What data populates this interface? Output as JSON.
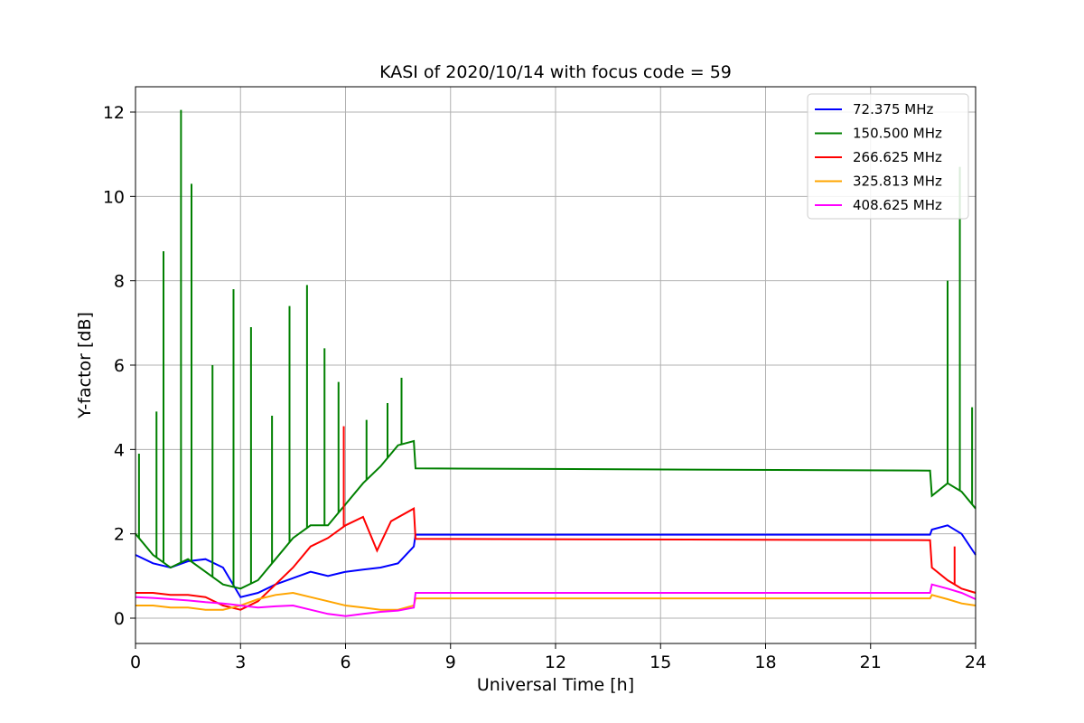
{
  "chart_data": {
    "type": "line",
    "title": "KASI of 2020/10/14 with focus code = 59",
    "xlabel": "Universal Time [h]",
    "ylabel": "Y-factor [dB]",
    "xlim": [
      0,
      24
    ],
    "ylim": [
      -0.6,
      12.6
    ],
    "xticks": [
      0,
      3,
      6,
      9,
      12,
      15,
      18,
      21,
      24
    ],
    "yticks": [
      0,
      2,
      4,
      6,
      8,
      10,
      12
    ],
    "grid": true,
    "legend_position": "top-right",
    "series": [
      {
        "name": " 72.375 MHz",
        "color": "#0000ff",
        "points": [
          [
            0,
            1.5
          ],
          [
            0.5,
            1.3
          ],
          [
            1,
            1.2
          ],
          [
            1.5,
            1.35
          ],
          [
            2,
            1.4
          ],
          [
            2.5,
            1.2
          ],
          [
            3,
            0.5
          ],
          [
            3.5,
            0.6
          ],
          [
            4,
            0.8
          ],
          [
            4.5,
            0.95
          ],
          [
            5,
            1.1
          ],
          [
            5.5,
            1.0
          ],
          [
            6,
            1.1
          ],
          [
            6.5,
            1.15
          ],
          [
            7,
            1.2
          ],
          [
            7.5,
            1.3
          ],
          [
            7.95,
            1.7
          ],
          [
            8,
            1.98
          ],
          [
            22.7,
            1.98
          ],
          [
            22.75,
            2.1
          ],
          [
            23.2,
            2.2
          ],
          [
            23.6,
            2.0
          ],
          [
            24,
            1.5
          ]
        ]
      },
      {
        "name": "150.500 MHz",
        "color": "#008000",
        "points": [
          [
            0,
            2.0
          ],
          [
            0.5,
            1.5
          ],
          [
            1,
            1.2
          ],
          [
            1.5,
            1.4
          ],
          [
            2,
            1.1
          ],
          [
            2.5,
            0.8
          ],
          [
            3,
            0.7
          ],
          [
            3.5,
            0.9
          ],
          [
            4,
            1.4
          ],
          [
            4.5,
            1.9
          ],
          [
            5,
            2.2
          ],
          [
            5.5,
            2.2
          ],
          [
            6,
            2.7
          ],
          [
            6.5,
            3.2
          ],
          [
            7,
            3.6
          ],
          [
            7.5,
            4.1
          ],
          [
            7.95,
            4.2
          ],
          [
            8,
            3.55
          ],
          [
            22.7,
            3.5
          ],
          [
            22.75,
            2.9
          ],
          [
            23.2,
            3.2
          ],
          [
            23.6,
            3.0
          ],
          [
            24,
            2.6
          ]
        ],
        "peaks": [
          [
            0.1,
            3.9
          ],
          [
            0.6,
            4.9
          ],
          [
            0.8,
            8.7
          ],
          [
            1.3,
            12.05
          ],
          [
            1.6,
            10.3
          ],
          [
            2.2,
            6.0
          ],
          [
            2.8,
            7.8
          ],
          [
            3.3,
            6.9
          ],
          [
            3.9,
            4.8
          ],
          [
            4.4,
            7.4
          ],
          [
            4.9,
            7.9
          ],
          [
            5.4,
            6.4
          ],
          [
            5.8,
            5.6
          ],
          [
            6.6,
            4.7
          ],
          [
            7.2,
            5.1
          ],
          [
            7.6,
            5.7
          ],
          [
            23.2,
            8.0
          ],
          [
            23.55,
            10.7
          ],
          [
            23.9,
            5.0
          ]
        ]
      },
      {
        "name": "266.625 MHz",
        "color": "#ff0000",
        "points": [
          [
            0,
            0.6
          ],
          [
            0.5,
            0.6
          ],
          [
            1,
            0.55
          ],
          [
            1.5,
            0.55
          ],
          [
            2,
            0.5
          ],
          [
            2.5,
            0.3
          ],
          [
            3,
            0.2
          ],
          [
            3.5,
            0.4
          ],
          [
            4,
            0.8
          ],
          [
            4.5,
            1.2
          ],
          [
            5,
            1.7
          ],
          [
            5.5,
            1.9
          ],
          [
            6,
            2.2
          ],
          [
            6.5,
            2.4
          ],
          [
            6.9,
            1.6
          ],
          [
            7.3,
            2.3
          ],
          [
            7.95,
            2.6
          ],
          [
            8,
            1.88
          ],
          [
            22.7,
            1.85
          ],
          [
            22.75,
            1.2
          ],
          [
            23.2,
            0.9
          ],
          [
            23.6,
            0.7
          ],
          [
            24,
            0.6
          ]
        ],
        "peaks": [
          [
            5.95,
            4.55
          ],
          [
            23.4,
            1.7
          ]
        ]
      },
      {
        "name": "325.813 MHz",
        "color": "#ffa500",
        "points": [
          [
            0,
            0.3
          ],
          [
            0.5,
            0.3
          ],
          [
            1,
            0.25
          ],
          [
            1.5,
            0.25
          ],
          [
            2,
            0.2
          ],
          [
            2.5,
            0.2
          ],
          [
            3,
            0.3
          ],
          [
            3.5,
            0.45
          ],
          [
            4,
            0.55
          ],
          [
            4.5,
            0.6
          ],
          [
            5,
            0.5
          ],
          [
            5.5,
            0.4
          ],
          [
            6,
            0.3
          ],
          [
            6.5,
            0.25
          ],
          [
            7,
            0.2
          ],
          [
            7.5,
            0.2
          ],
          [
            7.95,
            0.3
          ],
          [
            8,
            0.47
          ],
          [
            22.7,
            0.47
          ],
          [
            22.75,
            0.55
          ],
          [
            23.2,
            0.45
          ],
          [
            23.6,
            0.35
          ],
          [
            24,
            0.3
          ]
        ]
      },
      {
        "name": "408.625 MHz",
        "color": "#ff00ff",
        "points": [
          [
            0,
            0.5
          ],
          [
            0.5,
            0.48
          ],
          [
            1,
            0.45
          ],
          [
            1.5,
            0.42
          ],
          [
            2,
            0.38
          ],
          [
            2.5,
            0.35
          ],
          [
            3,
            0.3
          ],
          [
            3.5,
            0.25
          ],
          [
            4,
            0.28
          ],
          [
            4.5,
            0.3
          ],
          [
            5,
            0.2
          ],
          [
            5.5,
            0.1
          ],
          [
            6,
            0.05
          ],
          [
            6.5,
            0.1
          ],
          [
            7,
            0.15
          ],
          [
            7.5,
            0.18
          ],
          [
            7.95,
            0.25
          ],
          [
            8,
            0.6
          ],
          [
            22.7,
            0.6
          ],
          [
            22.75,
            0.8
          ],
          [
            23.2,
            0.7
          ],
          [
            23.6,
            0.6
          ],
          [
            24,
            0.45
          ]
        ]
      }
    ]
  }
}
